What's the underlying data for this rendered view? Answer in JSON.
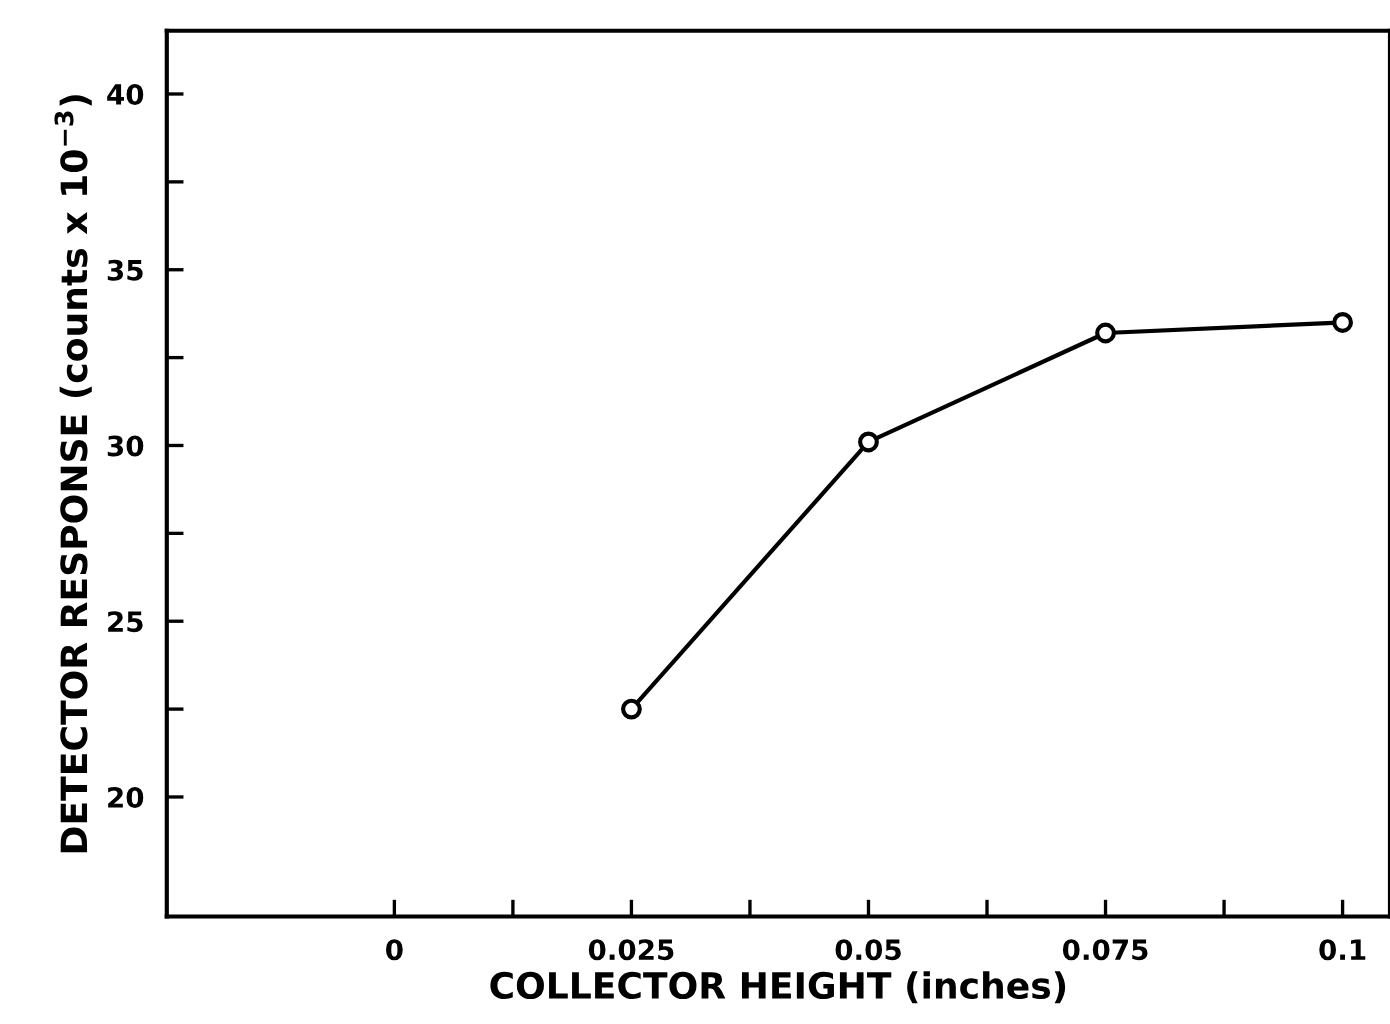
{
  "chart_data": {
    "type": "line",
    "xlabel": "COLLECTOR HEIGHT (inches)",
    "ylabel": "DETECTOR RESPONSE (counts x 10$^{−3}$)",
    "x": [
      0.025,
      0.05,
      0.075,
      0.1
    ],
    "series": [
      {
        "color": "#000000",
        "values": [
          22.5,
          30.1,
          33.2,
          33.5
        ]
      }
    ],
    "xlim": [
      -0.024,
      0.105
    ],
    "ylim": [
      16.6,
      41.8
    ],
    "xticks": [
      0,
      {
        "value": 0.0125,
        "label": null
      },
      0.025,
      {
        "value": 0.0375,
        "label": null
      },
      0.05,
      {
        "value": 0.0625,
        "label": null
      },
      0.075,
      {
        "value": 0.0875,
        "label": null
      },
      0.1
    ],
    "yticks": [
      20,
      {
        "value": 22.5,
        "label": null
      },
      25,
      {
        "value": 27.5,
        "label": null
      },
      30,
      {
        "value": 32.5,
        "label": null
      },
      35,
      {
        "value": 37.5,
        "label": null
      },
      40
    ],
    "marker": "circle",
    "line_style": "solid",
    "grid": false
  }
}
